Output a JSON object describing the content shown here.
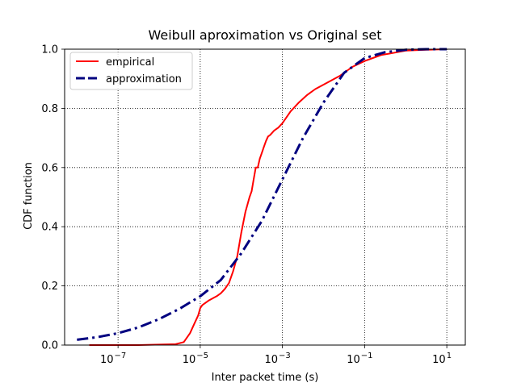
{
  "chart_data": {
    "type": "line",
    "title": "Weibull aproximation vs Original set",
    "xlabel": "Inter packet time (s)",
    "ylabel": "CDF function",
    "xscale": "log",
    "xlim_log10": [
      -8.3,
      1.45
    ],
    "ylim": [
      0,
      1.0
    ],
    "x_ticks": [
      {
        "exp": -7,
        "label": "10",
        "sup": "−7"
      },
      {
        "exp": -5,
        "label": "10",
        "sup": "−5"
      },
      {
        "exp": -3,
        "label": "10",
        "sup": "−3"
      },
      {
        "exp": -1,
        "label": "10",
        "sup": "−1"
      },
      {
        "exp": 1,
        "label": "10",
        "sup": "1"
      }
    ],
    "y_ticks": [
      {
        "value": 0.0,
        "label": "0.0"
      },
      {
        "value": 0.2,
        "label": "0.2"
      },
      {
        "value": 0.4,
        "label": "0.4"
      },
      {
        "value": 0.6,
        "label": "0.6"
      },
      {
        "value": 0.8,
        "label": "0.8"
      },
      {
        "value": 1.0,
        "label": "1.0"
      }
    ],
    "grid": true,
    "legend_position": "upper-left",
    "series": [
      {
        "name": "empirical",
        "color": "#ff0000",
        "style": "solid",
        "log10_x": [
          -7.7,
          -6.5,
          -5.6,
          -5.4,
          -5.25,
          -5.15,
          -5.05,
          -5.0,
          -4.95,
          -4.9,
          -4.8,
          -4.6,
          -4.5,
          -4.4,
          -4.3,
          -4.2,
          -4.1,
          -4.0,
          -3.9,
          -3.8,
          -3.75,
          -3.7,
          -3.65,
          -3.6,
          -3.55,
          -3.5,
          -3.45,
          -3.4,
          -3.35,
          -3.3,
          -3.2,
          -3.1,
          -3.0,
          -2.9,
          -2.8,
          -2.6,
          -2.4,
          -2.2,
          -2.0,
          -1.6,
          -1.3,
          -1.0,
          -0.8,
          -0.6,
          -0.4,
          -0.2,
          0.0,
          0.5,
          1.0
        ],
        "y": [
          0.0,
          0.0,
          0.003,
          0.01,
          0.04,
          0.07,
          0.1,
          0.125,
          0.135,
          0.14,
          0.15,
          0.165,
          0.175,
          0.19,
          0.21,
          0.25,
          0.3,
          0.38,
          0.45,
          0.5,
          0.52,
          0.56,
          0.6,
          0.6,
          0.63,
          0.65,
          0.67,
          0.69,
          0.705,
          0.71,
          0.725,
          0.735,
          0.75,
          0.77,
          0.79,
          0.82,
          0.845,
          0.865,
          0.88,
          0.91,
          0.94,
          0.96,
          0.97,
          0.98,
          0.985,
          0.99,
          0.995,
          0.998,
          1.0
        ]
      },
      {
        "name": "approximation",
        "color": "#000080",
        "style": "dashdot",
        "log10_x": [
          -8.0,
          -7.5,
          -7.0,
          -6.5,
          -6.0,
          -5.5,
          -5.0,
          -4.5,
          -4.0,
          -3.5,
          -3.0,
          -2.5,
          -2.0,
          -1.5,
          -1.0,
          -0.5,
          0.0,
          0.5,
          1.0
        ],
        "y": [
          0.018,
          0.027,
          0.04,
          0.06,
          0.088,
          0.123,
          0.165,
          0.22,
          0.31,
          0.42,
          0.56,
          0.7,
          0.82,
          0.92,
          0.97,
          0.99,
          0.998,
          1.0,
          1.0
        ]
      }
    ]
  }
}
